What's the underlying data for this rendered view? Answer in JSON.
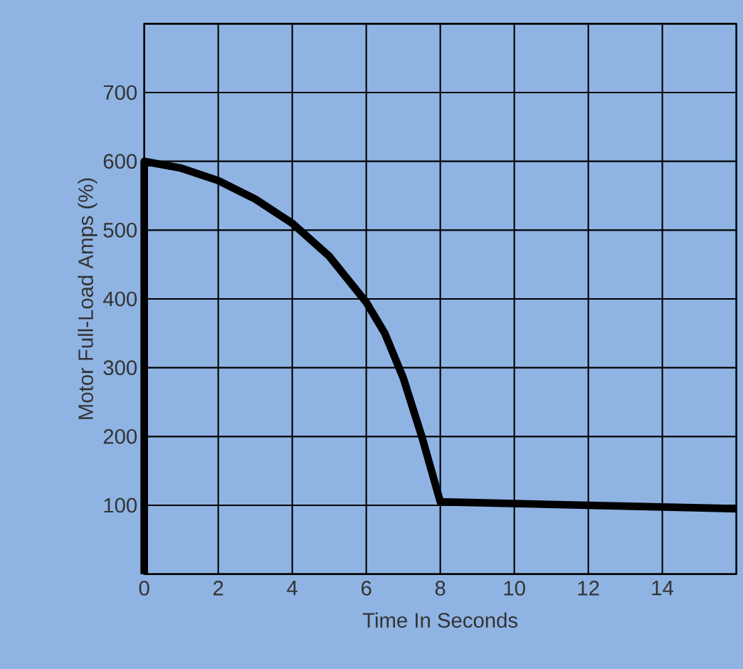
{
  "chart_data": {
    "type": "line",
    "xlabel": "Time In Seconds",
    "ylabel": "Motor Full-Load Amps (%)",
    "xlim": [
      0,
      16
    ],
    "ylim": [
      0,
      800
    ],
    "xticks": [
      0,
      2,
      4,
      6,
      8,
      10,
      12,
      14,
      {
        "value": 16,
        "label": null
      }
    ],
    "yticks": [
      {
        "value": 0,
        "label": null
      },
      100,
      200,
      300,
      400,
      500,
      600,
      700,
      {
        "value": 800,
        "label": null
      }
    ],
    "grid": true,
    "series": [
      {
        "color": "#000000",
        "x": [
          0,
          0,
          1,
          2,
          3,
          4,
          5,
          6,
          6.5,
          7,
          7.5,
          8,
          16
        ],
        "values": [
          0,
          600,
          590,
          572,
          545,
          510,
          462,
          395,
          350,
          285,
          200,
          105,
          95
        ]
      }
    ]
  }
}
